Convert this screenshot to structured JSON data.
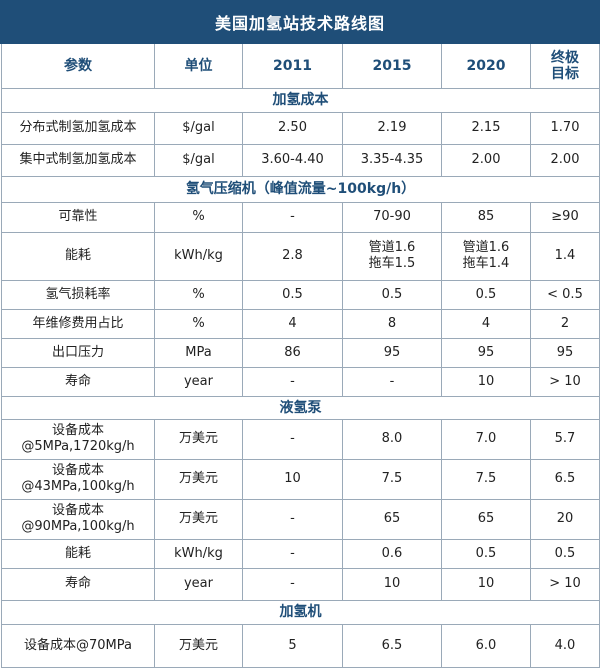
{
  "title": "美国加氢站技术路线图",
  "columns": [
    "参数",
    "单位",
    "2011",
    "2015",
    "2020",
    "终极\n目标"
  ],
  "rows": [
    {
      "type": "section",
      "label": "加氢成本"
    },
    {
      "type": "data",
      "cells": [
        "分布式制氢加氢成本",
        "$/gal",
        "2.50",
        "2.19",
        "2.15",
        "1.70"
      ]
    },
    {
      "type": "data",
      "cells": [
        "集中式制氢加氢成本",
        "$/gal",
        "3.60-4.40",
        "3.35-4.35",
        "2.00",
        "2.00"
      ]
    },
    {
      "type": "section",
      "label": "氢气压缩机（峰值流量~100kg/h）"
    },
    {
      "type": "data",
      "cells": [
        "可靠性",
        "%",
        "-",
        "70-90",
        "85",
        "≥90"
      ]
    },
    {
      "type": "data",
      "cells": [
        "能耗",
        "kWh/kg",
        "2.8",
        "管道1.6\n拖车1.5",
        "管道1.6\n拖车1.4",
        "1.4"
      ]
    },
    {
      "type": "data",
      "cells": [
        "氢气损耗率",
        "%",
        "0.5",
        "0.5",
        "0.5",
        "< 0.5"
      ]
    },
    {
      "type": "data",
      "cells": [
        "年维修费用占比",
        "%",
        "4",
        "8",
        "4",
        "2"
      ]
    },
    {
      "type": "data",
      "cells": [
        "出口压力",
        "MPa",
        "86",
        "95",
        "95",
        "95"
      ]
    },
    {
      "type": "data",
      "cells": [
        "寿命",
        "year",
        "-",
        "-",
        "10",
        "> 10"
      ]
    },
    {
      "type": "section",
      "label": "液氢泵"
    },
    {
      "type": "data",
      "cells": [
        "设备成本\n@5MPa,1720kg/h",
        "万美元",
        "-",
        "8.0",
        "7.0",
        "5.7"
      ]
    },
    {
      "type": "data",
      "cells": [
        "设备成本\n@43MPa,100kg/h",
        "万美元",
        "10",
        "7.5",
        "7.5",
        "6.5"
      ]
    },
    {
      "type": "data",
      "cells": [
        "设备成本\n@90MPa,100kg/h",
        "万美元",
        "-",
        "65",
        "65",
        "20"
      ]
    },
    {
      "type": "data",
      "cells": [
        "能耗",
        "kWh/kg",
        "-",
        "0.6",
        "0.5",
        "0.5"
      ]
    },
    {
      "type": "data",
      "cells": [
        "寿命",
        "year",
        "-",
        "10",
        "10",
        "> 10"
      ]
    },
    {
      "type": "section",
      "label": "加氢机"
    },
    {
      "type": "data",
      "cells": [
        "设备成本@70MPa",
        "万美元",
        "5",
        "6.5",
        "6.0",
        "4.0"
      ]
    }
  ],
  "colors": {
    "title_bg": "#1f4e78",
    "header_text": "#1f4e78",
    "grid": "#9aa9b8"
  }
}
